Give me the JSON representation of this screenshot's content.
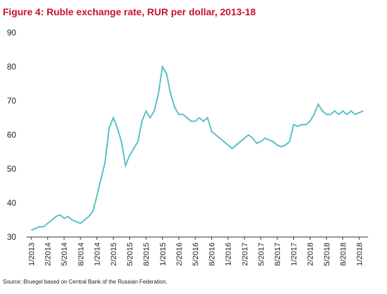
{
  "chart_data": {
    "type": "line",
    "title": "Figure 4: Ruble exchange rate, RUR per dollar, 2013-18",
    "source": "Source: Bruegel based on Central Bank of the Russian Federation.",
    "categories": [
      "1/2013",
      null,
      null,
      null,
      "2/2014",
      null,
      null,
      null,
      "5/2014",
      null,
      null,
      null,
      "8/2014",
      null,
      null,
      null,
      "1/2014",
      null,
      null,
      null,
      "2/2015",
      null,
      null,
      null,
      "5/2015",
      null,
      null,
      null,
      "8/2015",
      null,
      null,
      null,
      "1/2015",
      null,
      null,
      null,
      "2/2016",
      null,
      null,
      null,
      "5/2016",
      null,
      null,
      null,
      "8/2016",
      null,
      null,
      null,
      "1/2016",
      null,
      null,
      null,
      "2/2017",
      null,
      null,
      null,
      "5/2017",
      null,
      null,
      null,
      "8/2017",
      null,
      null,
      null,
      "1/2017",
      null,
      null,
      null,
      "2/2018",
      null,
      null,
      null,
      "5/2018",
      null,
      null,
      null,
      "8/2018",
      null,
      null,
      null,
      "1/2018",
      null
    ],
    "series": [
      {
        "name": "RUR per dollar",
        "color": "#5bbfc4",
        "values": [
          32,
          32.5,
          33,
          33,
          34,
          35,
          36,
          36.5,
          35.5,
          36,
          35,
          34.5,
          34,
          35,
          36,
          37.5,
          42,
          47,
          52,
          62,
          65,
          62,
          58,
          51,
          54,
          56,
          58,
          64,
          67,
          65,
          67,
          72,
          80,
          78,
          72,
          68,
          66,
          66,
          65,
          64,
          64,
          65,
          64,
          65,
          61,
          60,
          59,
          58,
          57,
          56,
          57,
          58,
          59,
          60,
          59,
          57.5,
          58,
          59,
          58.5,
          58,
          57,
          56.5,
          57,
          58,
          63,
          62.5,
          63,
          63,
          64,
          66,
          69,
          67,
          66,
          66,
          67,
          66,
          67,
          66,
          67,
          66,
          66.5,
          67
        ]
      }
    ],
    "ylim": [
      30,
      90
    ],
    "yticks": [
      30,
      40,
      50,
      60,
      70,
      80,
      90
    ],
    "grid": false
  }
}
